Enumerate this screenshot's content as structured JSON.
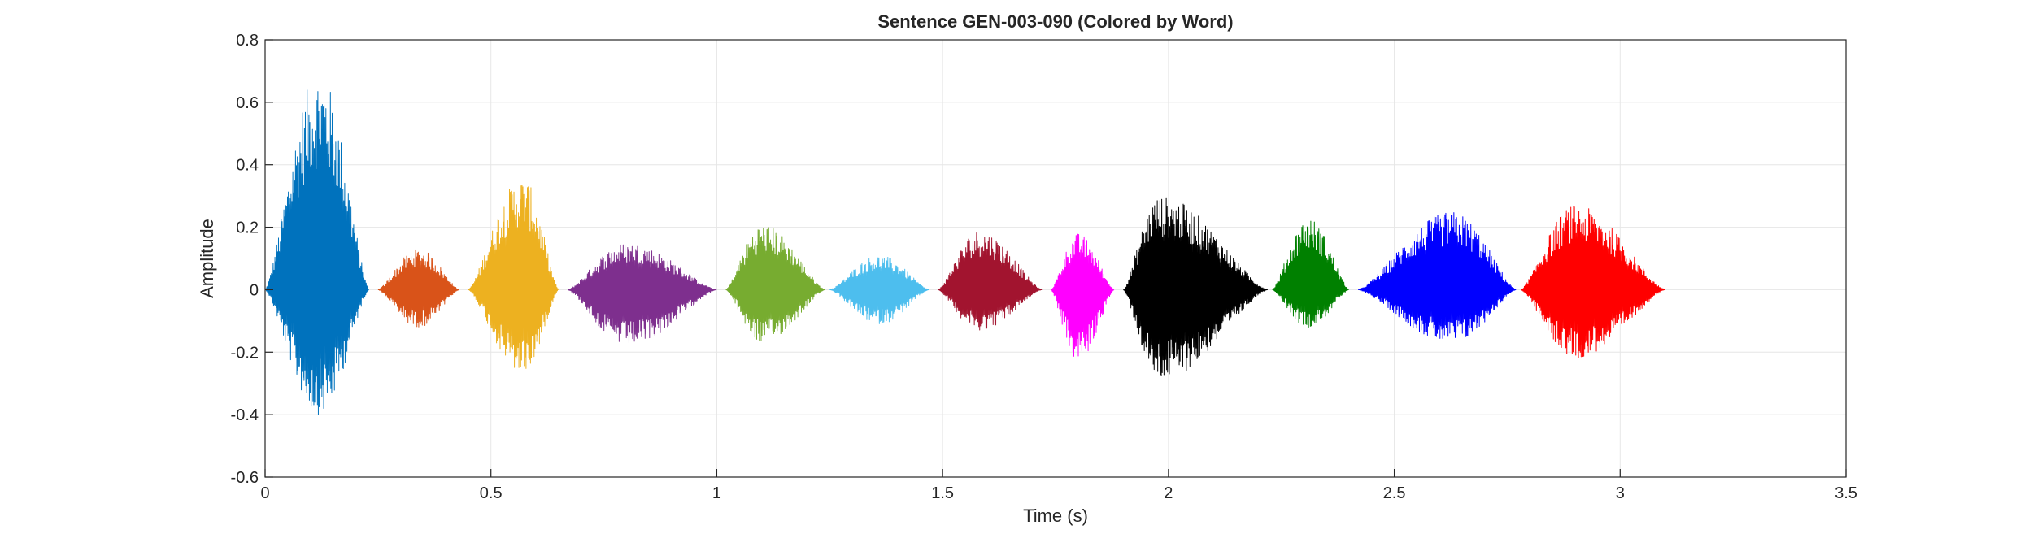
{
  "chart_data": {
    "type": "line",
    "title": "Sentence GEN-003-090 (Colored by Word)",
    "xlabel": "Time (s)",
    "ylabel": "Amplitude",
    "xlim": [
      0,
      3.5
    ],
    "ylim": [
      -0.6,
      0.8
    ],
    "xticks": [
      0,
      0.5,
      1,
      1.5,
      2,
      2.5,
      3,
      3.5
    ],
    "xtick_labels": [
      "0",
      "0.5",
      "1",
      "1.5",
      "2",
      "2.5",
      "3",
      "3.5"
    ],
    "yticks": [
      -0.6,
      -0.4,
      -0.2,
      0,
      0.2,
      0.4,
      0.6,
      0.8
    ],
    "ytick_labels": [
      "-0.6",
      "-0.4",
      "-0.2",
      "0",
      "0.2",
      "0.4",
      "0.6",
      "0.8"
    ],
    "grid": true,
    "series": [
      {
        "start": 0.0,
        "end": 0.23,
        "peak_time": 0.12,
        "pos_peak": 0.7,
        "neg_peak": -0.4,
        "color": "#0072BD"
      },
      {
        "start": 0.25,
        "end": 0.43,
        "peak_time": 0.34,
        "pos_peak": 0.13,
        "neg_peak": -0.12,
        "color": "#D95319"
      },
      {
        "start": 0.45,
        "end": 0.65,
        "peak_time": 0.57,
        "pos_peak": 0.36,
        "neg_peak": -0.27,
        "color": "#EDB120"
      },
      {
        "start": 0.67,
        "end": 1.0,
        "peak_time": 0.8,
        "pos_peak": 0.15,
        "neg_peak": -0.18,
        "color": "#7E2F8E"
      },
      {
        "start": 1.02,
        "end": 1.24,
        "peak_time": 1.1,
        "pos_peak": 0.21,
        "neg_peak": -0.17,
        "color": "#77AC30"
      },
      {
        "start": 1.25,
        "end": 1.47,
        "peak_time": 1.36,
        "pos_peak": 0.11,
        "neg_peak": -0.11,
        "color": "#4DBEEE"
      },
      {
        "start": 1.49,
        "end": 1.72,
        "peak_time": 1.58,
        "pos_peak": 0.19,
        "neg_peak": -0.13,
        "color": "#A2142F"
      },
      {
        "start": 1.74,
        "end": 1.88,
        "peak_time": 1.8,
        "pos_peak": 0.18,
        "neg_peak": -0.23,
        "color": "#FF00FF"
      },
      {
        "start": 1.9,
        "end": 2.22,
        "peak_time": 1.98,
        "pos_peak": 0.3,
        "neg_peak": -0.29,
        "color": "#000000"
      },
      {
        "start": 2.23,
        "end": 2.4,
        "peak_time": 2.31,
        "pos_peak": 0.23,
        "neg_peak": -0.12,
        "color": "#008000"
      },
      {
        "start": 2.42,
        "end": 2.77,
        "peak_time": 2.63,
        "pos_peak": 0.25,
        "neg_peak": -0.17,
        "color": "#0000FF"
      },
      {
        "start": 2.78,
        "end": 3.1,
        "peak_time": 2.9,
        "pos_peak": 0.27,
        "neg_peak": -0.22,
        "color": "#FF0000"
      }
    ]
  }
}
